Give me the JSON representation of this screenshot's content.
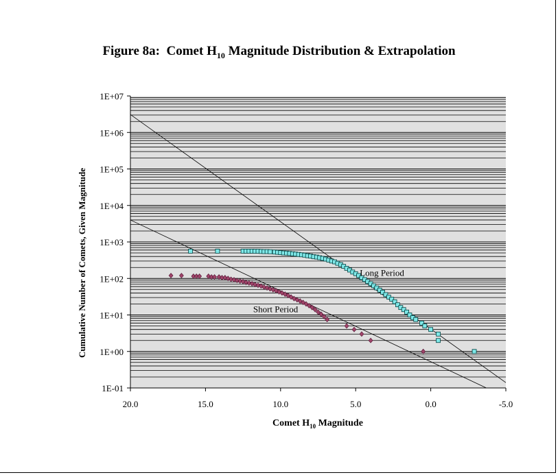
{
  "chart_data": {
    "type": "scatter",
    "title": {
      "before": "Figure 8a:  Comet H",
      "sub": "10",
      "after": " Magnitude Distribution & Extrapolation"
    },
    "xlabel": {
      "before": "Comet H",
      "sub": "10",
      "after": " Magnitude"
    },
    "ylabel": "Cumulative Number of Comets, Given Magnitude",
    "x_range": [
      20,
      -5
    ],
    "x_reversed": true,
    "y_scale": "log",
    "y_range": [
      0.1,
      10000000
    ],
    "x_ticks": [
      {
        "value": 20,
        "label": "20.0"
      },
      {
        "value": 15,
        "label": "15.0"
      },
      {
        "value": 10,
        "label": "10.0"
      },
      {
        "value": 5,
        "label": "5.0"
      },
      {
        "value": 0,
        "label": "0.0"
      },
      {
        "value": -5,
        "label": "-5.0"
      }
    ],
    "y_ticks": [
      {
        "value": 10000000,
        "label": "1E+07"
      },
      {
        "value": 1000000,
        "label": "1E+06"
      },
      {
        "value": 100000,
        "label": "1E+05"
      },
      {
        "value": 10000,
        "label": "1E+04"
      },
      {
        "value": 1000,
        "label": "1E+03"
      },
      {
        "value": 100,
        "label": "1E+02"
      },
      {
        "value": 10,
        "label": "1E+01"
      },
      {
        "value": 1,
        "label": "1E+00"
      },
      {
        "value": 0.1,
        "label": "1E-01"
      }
    ],
    "grid": true,
    "plot_background": "#e0e0e0",
    "series": [
      {
        "name": "Long Period",
        "marker": "square",
        "color": "#7fe8e8",
        "edge_color": "#004040",
        "points": [
          [
            16.0,
            560
          ],
          [
            14.2,
            560
          ],
          [
            12.5,
            560
          ],
          [
            12.3,
            560
          ],
          [
            12.1,
            560
          ],
          [
            11.9,
            560
          ],
          [
            11.7,
            555
          ],
          [
            11.5,
            555
          ],
          [
            11.3,
            550
          ],
          [
            11.1,
            545
          ],
          [
            10.9,
            545
          ],
          [
            10.7,
            540
          ],
          [
            10.4,
            530
          ],
          [
            10.2,
            520
          ],
          [
            10.0,
            510
          ],
          [
            9.8,
            500
          ],
          [
            9.6,
            495
          ],
          [
            9.4,
            485
          ],
          [
            9.2,
            475
          ],
          [
            9.0,
            465
          ],
          [
            8.8,
            455
          ],
          [
            8.6,
            445
          ],
          [
            8.4,
            435
          ],
          [
            8.2,
            420
          ],
          [
            8.0,
            410
          ],
          [
            7.8,
            395
          ],
          [
            7.6,
            385
          ],
          [
            7.4,
            370
          ],
          [
            7.2,
            355
          ],
          [
            7.0,
            340
          ],
          [
            6.8,
            320
          ],
          [
            6.6,
            300
          ],
          [
            6.4,
            285
          ],
          [
            6.2,
            260
          ],
          [
            6.0,
            240
          ],
          [
            5.8,
            215
          ],
          [
            5.6,
            190
          ],
          [
            5.4,
            170
          ],
          [
            5.2,
            150
          ],
          [
            5.0,
            135
          ],
          [
            4.8,
            120
          ],
          [
            4.6,
            105
          ],
          [
            4.4,
            93
          ],
          [
            4.2,
            82
          ],
          [
            4.0,
            72
          ],
          [
            3.8,
            63
          ],
          [
            3.6,
            55
          ],
          [
            3.4,
            48
          ],
          [
            3.2,
            42
          ],
          [
            3.0,
            36
          ],
          [
            2.8,
            31
          ],
          [
            2.6,
            27
          ],
          [
            2.4,
            23
          ],
          [
            2.2,
            19
          ],
          [
            2.0,
            16
          ],
          [
            1.8,
            14
          ],
          [
            1.6,
            12
          ],
          [
            1.4,
            10
          ],
          [
            1.2,
            8.5
          ],
          [
            1.0,
            7.5
          ],
          [
            0.6,
            6
          ],
          [
            0.4,
            5
          ],
          [
            0.0,
            4
          ],
          [
            -0.5,
            3
          ],
          [
            -0.5,
            2
          ],
          [
            -2.9,
            1
          ]
        ]
      },
      {
        "name": "Short Period",
        "marker": "diamond",
        "color": "#a0456a",
        "edge_color": "#501030",
        "points": [
          [
            17.3,
            120
          ],
          [
            16.6,
            120
          ],
          [
            15.8,
            115
          ],
          [
            15.6,
            115
          ],
          [
            15.4,
            115
          ],
          [
            14.8,
            115
          ],
          [
            14.6,
            110
          ],
          [
            14.4,
            110
          ],
          [
            14.1,
            110
          ],
          [
            13.9,
            105
          ],
          [
            13.7,
            105
          ],
          [
            13.5,
            100
          ],
          [
            13.3,
            95
          ],
          [
            13.1,
            92
          ],
          [
            12.9,
            88
          ],
          [
            12.7,
            85
          ],
          [
            12.5,
            82
          ],
          [
            12.3,
            78
          ],
          [
            12.1,
            75
          ],
          [
            11.9,
            72
          ],
          [
            11.7,
            68
          ],
          [
            11.5,
            65
          ],
          [
            11.3,
            62
          ],
          [
            11.1,
            58
          ],
          [
            10.9,
            55
          ],
          [
            10.7,
            52
          ],
          [
            10.5,
            49
          ],
          [
            10.3,
            46
          ],
          [
            10.1,
            43
          ],
          [
            9.9,
            40
          ],
          [
            9.7,
            37
          ],
          [
            9.5,
            34
          ],
          [
            9.3,
            31
          ],
          [
            9.1,
            28
          ],
          [
            8.9,
            26
          ],
          [
            8.7,
            24
          ],
          [
            8.5,
            22
          ],
          [
            8.3,
            20
          ],
          [
            8.1,
            18
          ],
          [
            7.9,
            16
          ],
          [
            7.7,
            14
          ],
          [
            7.5,
            12
          ],
          [
            7.3,
            10.5
          ],
          [
            7.1,
            9
          ],
          [
            6.9,
            7.5
          ],
          [
            5.6,
            5
          ],
          [
            5.1,
            4
          ],
          [
            4.6,
            3
          ],
          [
            4.0,
            2
          ],
          [
            0.5,
            1
          ]
        ]
      }
    ],
    "fit_lines": [
      {
        "from": [
          20,
          3100000
        ],
        "to": [
          -5,
          0.14
        ]
      },
      {
        "from": [
          20,
          4000
        ],
        "to": [
          -3.7,
          0.1
        ]
      }
    ],
    "annotations": [
      {
        "text": "Long Period",
        "x": 5.0,
        "y": 100
      },
      {
        "text": "Short Period",
        "x": 12.1,
        "y": 10
      }
    ]
  }
}
